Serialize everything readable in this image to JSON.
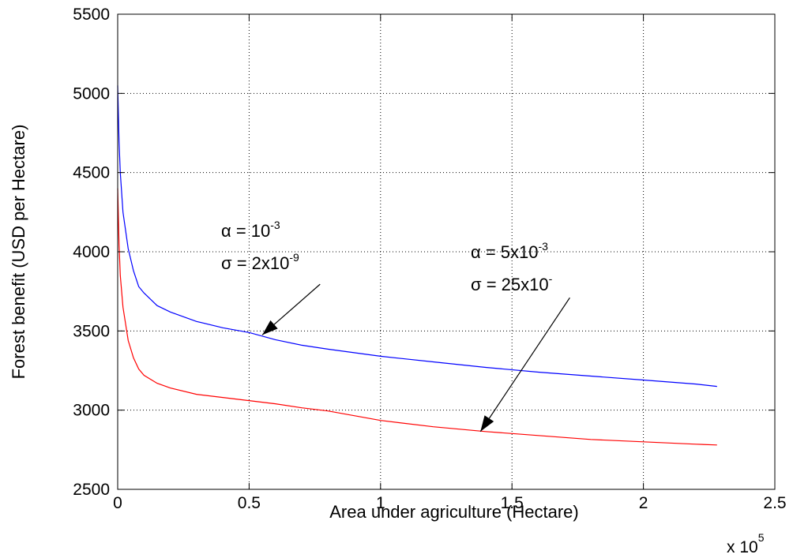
{
  "chart_data": {
    "type": "line",
    "xlabel": "Area under agriculture (Hectare)",
    "ylabel": "Forest benefit (USD per Hectare)",
    "x_multiplier_label": "x 10",
    "x_multiplier_exp": "5",
    "xlim": [
      0,
      2.5
    ],
    "ylim": [
      2500,
      5500
    ],
    "x_ticks": [
      0,
      0.5,
      1,
      1.5,
      2,
      2.5
    ],
    "x_tick_labels": [
      "0",
      "0.5",
      "1",
      "1.5",
      "2",
      "2.5"
    ],
    "y_ticks": [
      2500,
      3000,
      3500,
      4000,
      4500,
      5000,
      5500
    ],
    "y_tick_labels": [
      "2500",
      "3000",
      "3500",
      "4000",
      "4500",
      "5000",
      "5500"
    ],
    "grid": true,
    "series": [
      {
        "color": "#0000ff",
        "x": [
          0,
          0.005,
          0.01,
          0.02,
          0.04,
          0.06,
          0.08,
          0.1,
          0.15,
          0.2,
          0.3,
          0.4,
          0.5,
          0.6,
          0.7,
          0.8,
          1.0,
          1.2,
          1.4,
          1.6,
          1.8,
          2.0,
          2.2,
          2.28
        ],
        "y": [
          5050,
          4700,
          4500,
          4250,
          4020,
          3880,
          3780,
          3740,
          3660,
          3620,
          3560,
          3520,
          3490,
          3445,
          3410,
          3385,
          3340,
          3305,
          3270,
          3240,
          3215,
          3190,
          3165,
          3150
        ]
      },
      {
        "color": "#ff0000",
        "x": [
          0,
          0.005,
          0.01,
          0.02,
          0.04,
          0.06,
          0.08,
          0.1,
          0.15,
          0.2,
          0.3,
          0.4,
          0.5,
          0.6,
          0.7,
          0.8,
          1.0,
          1.2,
          1.4,
          1.6,
          1.8,
          2.0,
          2.2,
          2.28
        ],
        "y": [
          4400,
          4050,
          3850,
          3650,
          3440,
          3330,
          3260,
          3220,
          3170,
          3140,
          3100,
          3080,
          3060,
          3040,
          3015,
          2995,
          2935,
          2895,
          2865,
          2840,
          2815,
          2800,
          2785,
          2780
        ]
      }
    ],
    "annotations": [
      {
        "line1_prefix": "α = 10",
        "line1_exp": "-3",
        "line2_prefix": "σ = 2x10",
        "line2_exp": "-9",
        "arrow_target": [
          0.55,
          3475
        ],
        "arrow_from": [
          0.77,
          3795
        ]
      },
      {
        "line1_prefix": "α = 5x10",
        "line1_exp": "-3",
        "line2_prefix": "σ = 25x10",
        "line2_exp": "-",
        "arrow_target": [
          1.38,
          2865
        ],
        "arrow_from": [
          1.72,
          3710
        ]
      }
    ]
  }
}
